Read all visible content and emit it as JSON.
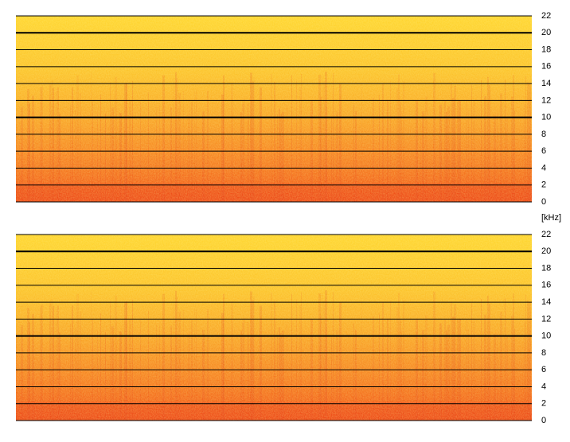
{
  "chart_data": [
    {
      "type": "spectrogram",
      "y_label": "[kHz]",
      "ylim": [
        0,
        22
      ],
      "yticks": [
        0,
        2,
        4,
        6,
        8,
        10,
        12,
        14,
        16,
        18,
        20,
        22
      ],
      "grid": true
    },
    {
      "type": "spectrogram",
      "ylim": [
        0,
        22
      ],
      "yticks": [
        0,
        2,
        4,
        6,
        8,
        10,
        12,
        14,
        16,
        18,
        20,
        22
      ],
      "grid": true
    }
  ]
}
